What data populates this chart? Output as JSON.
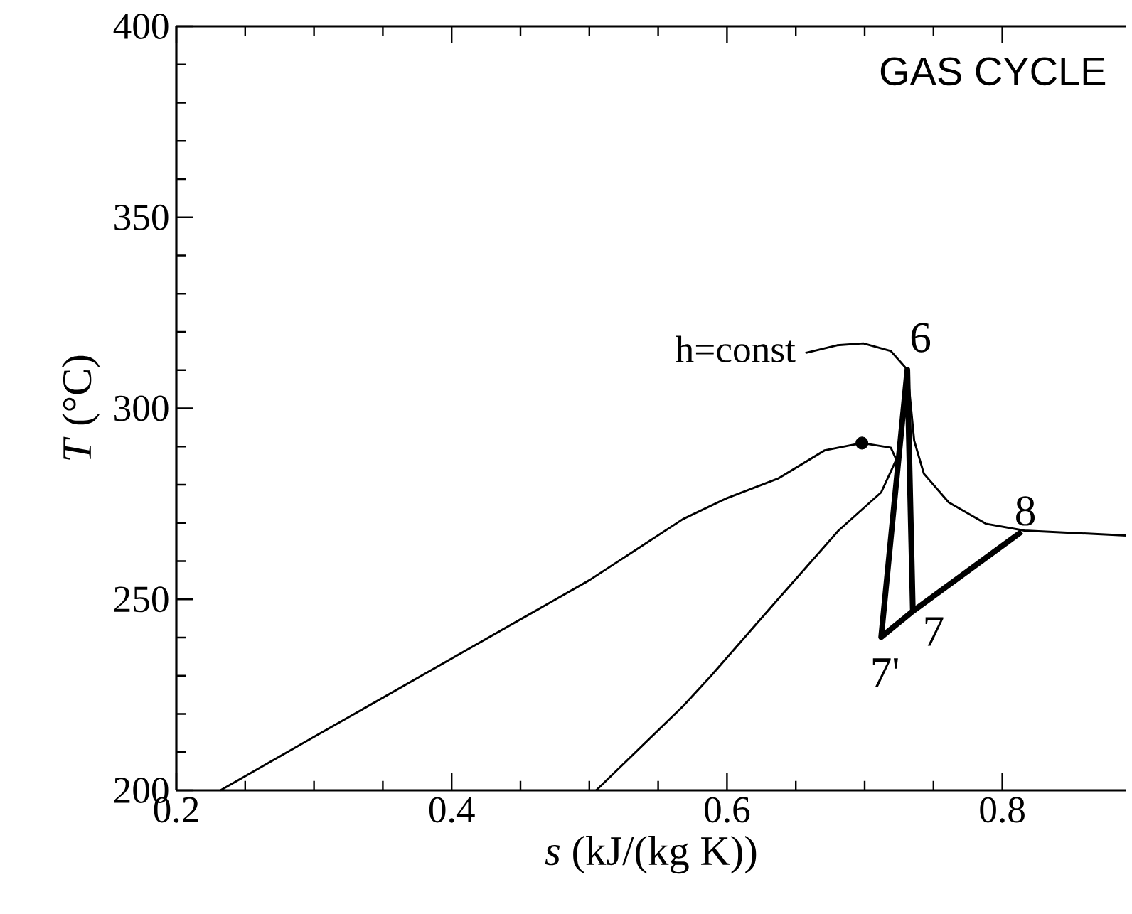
{
  "chart_data": {
    "type": "line",
    "xlabel": "*s*  (kJ/(kg K))",
    "ylabel": "*T* (°C)",
    "xlim": [
      0.2,
      0.89
    ],
    "ylim": [
      200,
      400
    ],
    "xticks": [
      0.2,
      0.4,
      0.6,
      0.8
    ],
    "yticks": [
      200,
      250,
      300,
      350,
      400
    ],
    "series": [
      {
        "color": "#000000",
        "x": [
          0.232,
          0.3,
          0.4,
          0.5,
          0.568,
          0.6,
          0.637,
          0.671,
          0.698,
          0.719,
          0.723,
          0.712,
          0.681,
          0.637,
          0.588,
          0.568,
          0.505
        ],
        "values": [
          200,
          214,
          234.5,
          255,
          271,
          276.5,
          281.6,
          289,
          290.9,
          289.7,
          286.6,
          278,
          268,
          250,
          229.8,
          222,
          200
        ]
      },
      {
        "color": "#000000",
        "x": [
          0.657,
          0.68,
          0.699,
          0.719,
          0.731,
          0.736,
          0.743,
          0.761,
          0.788,
          0.816,
          0.89
        ],
        "values": [
          314.5,
          316.5,
          317,
          315,
          310.1,
          291.5,
          282.9,
          275.4,
          269.8,
          268,
          266.7
        ]
      },
      {
        "color": "#000000",
        "x": [
          0.814,
          0.735,
          0.712,
          0.731,
          0.735
        ],
        "values": [
          267.7,
          246.9,
          240.1,
          310.1,
          246.9
        ]
      },
      {
        "type": "scatter",
        "marker": "circle",
        "color": "#000000",
        "x": [
          0.698
        ],
        "values": [
          290.9
        ]
      }
    ],
    "annotations": [
      {
        "text": "h=const",
        "x": 0.657,
        "y": 314.5
      },
      {
        "text": "6",
        "x": 0.731,
        "y": 310.1
      },
      {
        "text": "7'",
        "x": 0.712,
        "y": 240.1
      },
      {
        "text": "7",
        "x": 0.735,
        "y": 246.9
      },
      {
        "text": "8",
        "x": 0.814,
        "y": 267.7
      },
      "GAS CYCLE"
    ]
  }
}
